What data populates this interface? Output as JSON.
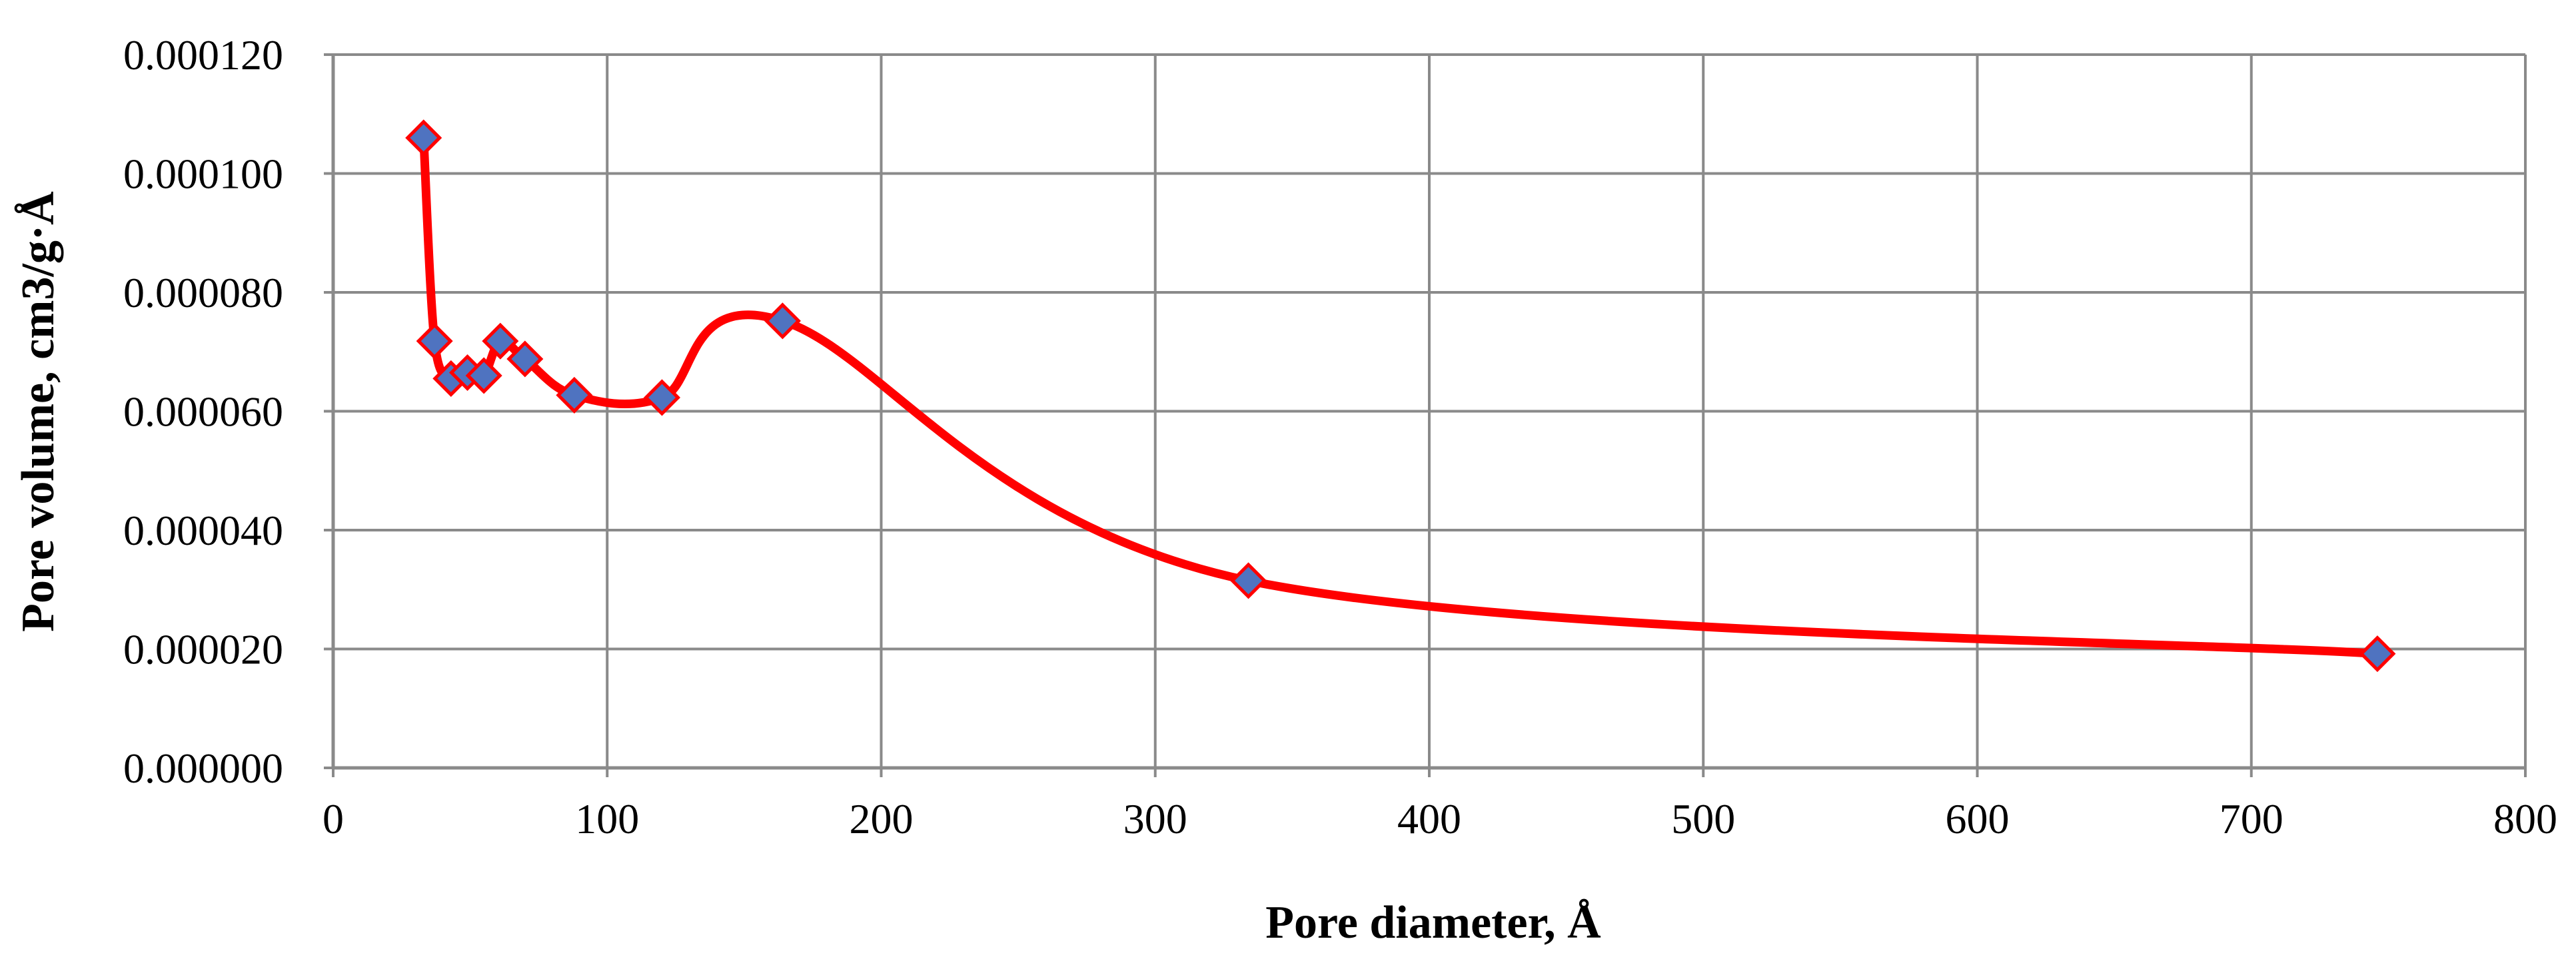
{
  "chart_data": {
    "type": "line",
    "smooth": true,
    "title": "",
    "xlabel": "Pore diameter, Å",
    "ylabel": "Pore volume, cm3/g·Å",
    "xlim": [
      0,
      800
    ],
    "ylim": [
      0,
      0.00012
    ],
    "x_ticks": [
      0,
      100,
      200,
      300,
      400,
      500,
      600,
      700,
      800
    ],
    "x_tick_labels": [
      "0",
      "100",
      "200",
      "300",
      "400",
      "500",
      "600",
      "700",
      "800"
    ],
    "y_ticks": [
      0,
      2e-05,
      4e-05,
      6e-05,
      8e-05,
      0.0001,
      0.00012
    ],
    "y_tick_labels": [
      "0.000000",
      "0.000020",
      "0.000040",
      "0.000060",
      "0.000080",
      "0.000100",
      "0.000120"
    ],
    "grid": true,
    "legend": "none",
    "series": [
      {
        "line_color": "#ff0000",
        "marker": "diamond",
        "marker_fill": "#4f73c0",
        "marker_edge": "#ff0000",
        "x": [
          33,
          37,
          43,
          49,
          55,
          61,
          70,
          88,
          120,
          164,
          334,
          746
        ],
        "y": [
          0.000106,
          7.18e-05,
          6.55e-05,
          6.65e-05,
          6.6e-05,
          7.18e-05,
          6.88e-05,
          6.27e-05,
          6.23e-05,
          7.52e-05,
          3.15e-05,
          1.92e-05
        ]
      }
    ]
  }
}
